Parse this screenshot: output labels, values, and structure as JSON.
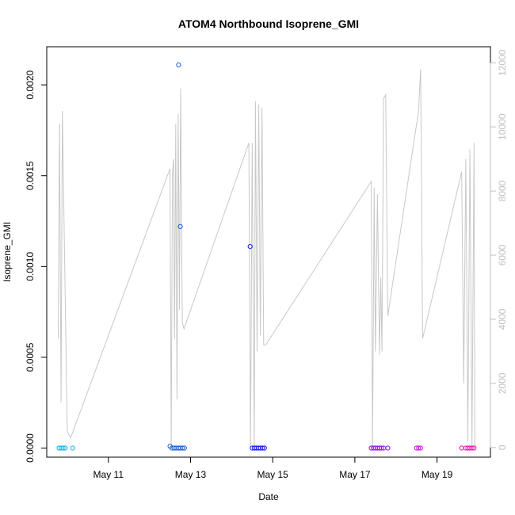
{
  "chart_data": {
    "type": "scatter",
    "title": "ATOM4 Northbound Isoprene_GMI",
    "xlabel": "Date",
    "ylabel": "Isoprene_GMI",
    "x_ticks": [
      "May 11",
      "May 13",
      "May 15",
      "May 17",
      "May 19"
    ],
    "x_tick_values": [
      11,
      13,
      15,
      17,
      19
    ],
    "xlim": [
      9.5,
      20.3
    ],
    "ylim": [
      -5e-05,
      0.00221
    ],
    "y_ticks": [
      "0.0000",
      "0.0005",
      "0.0010",
      "0.0015",
      "0.0020"
    ],
    "y_tick_values": [
      0,
      0.0005,
      0.001,
      0.0015,
      0.002
    ],
    "secondary_axis": {
      "ylim": [
        -300,
        12500
      ],
      "ticks": [
        "0",
        "2000",
        "4000",
        "6000",
        "8000",
        "10000",
        "12000"
      ],
      "tick_values": [
        0,
        2000,
        4000,
        6000,
        8000,
        10000,
        12000
      ],
      "color": "#bfbfbf"
    },
    "colors": {
      "line": "#c8c8c8",
      "box": "#000000"
    },
    "series": [
      {
        "type": "scatter",
        "points": [
          {
            "x": 9.8,
            "y": 0,
            "c": "#19b2e6"
          },
          {
            "x": 9.85,
            "y": 0,
            "c": "#19b2e6"
          },
          {
            "x": 9.9,
            "y": 0,
            "c": "#19b2e6"
          },
          {
            "x": 9.95,
            "y": 0,
            "c": "#19b2e6"
          },
          {
            "x": 10.13,
            "y": 0,
            "c": "#19b2e6"
          },
          {
            "x": 12.5,
            "y": 1e-05,
            "c": "#1f5fd6"
          },
          {
            "x": 12.55,
            "y": 0,
            "c": "#1f5fd6"
          },
          {
            "x": 12.6,
            "y": 0,
            "c": "#1f5fd6"
          },
          {
            "x": 12.65,
            "y": 0,
            "c": "#1f5fd6"
          },
          {
            "x": 12.7,
            "y": 0,
            "c": "#1f5fd6"
          },
          {
            "x": 12.75,
            "y": 0,
            "c": "#1f5fd6"
          },
          {
            "x": 12.8,
            "y": 0,
            "c": "#1f5fd6"
          },
          {
            "x": 12.85,
            "y": 0,
            "c": "#1f5fd6"
          },
          {
            "x": 12.71,
            "y": 0.00211,
            "c": "#1f5fd6"
          },
          {
            "x": 12.75,
            "y": 0.00122,
            "c": "#1f5fd6"
          },
          {
            "x": 14.45,
            "y": 0.00111,
            "c": "#1a1ae6"
          },
          {
            "x": 14.5,
            "y": 0,
            "c": "#1a1ae6"
          },
          {
            "x": 14.55,
            "y": 0,
            "c": "#1a1ae6"
          },
          {
            "x": 14.6,
            "y": 0,
            "c": "#1a1ae6"
          },
          {
            "x": 14.65,
            "y": 0,
            "c": "#1a1ae6"
          },
          {
            "x": 14.7,
            "y": 0,
            "c": "#1a1ae6"
          },
          {
            "x": 14.75,
            "y": 0,
            "c": "#1a1ae6"
          },
          {
            "x": 14.8,
            "y": 0,
            "c": "#1a1ae6"
          },
          {
            "x": 17.4,
            "y": 0,
            "c": "#8a1ae6"
          },
          {
            "x": 17.45,
            "y": 0,
            "c": "#8a1ae6"
          },
          {
            "x": 17.5,
            "y": 0,
            "c": "#8a1ae6"
          },
          {
            "x": 17.55,
            "y": 0,
            "c": "#8a1ae6"
          },
          {
            "x": 17.6,
            "y": 0,
            "c": "#8a1ae6"
          },
          {
            "x": 17.65,
            "y": 0,
            "c": "#8a1ae6"
          },
          {
            "x": 17.7,
            "y": 0,
            "c": "#8a1ae6"
          },
          {
            "x": 17.8,
            "y": 0,
            "c": "#8a1ae6"
          },
          {
            "x": 18.5,
            "y": 0,
            "c": "#c21ad6"
          },
          {
            "x": 18.55,
            "y": 0,
            "c": "#c21ad6"
          },
          {
            "x": 18.6,
            "y": 0,
            "c": "#c21ad6"
          },
          {
            "x": 19.6,
            "y": 0,
            "c": "#e61aa8"
          },
          {
            "x": 19.7,
            "y": 0,
            "c": "#e61aa8"
          },
          {
            "x": 19.75,
            "y": 0,
            "c": "#e61aa8"
          },
          {
            "x": 19.8,
            "y": 0,
            "c": "#e61aa8"
          },
          {
            "x": 19.85,
            "y": 0,
            "c": "#e61aa8"
          },
          {
            "x": 19.9,
            "y": 0,
            "c": "#e61aa8"
          }
        ]
      },
      {
        "type": "line",
        "axis": "secondary",
        "points": [
          [
            9.78,
            3400
          ],
          [
            9.81,
            10100
          ],
          [
            9.85,
            1400
          ],
          [
            9.88,
            10500
          ],
          [
            10.0,
            500
          ],
          [
            10.08,
            300
          ],
          [
            12.5,
            8700
          ],
          [
            12.53,
            50
          ],
          [
            12.56,
            8600
          ],
          [
            12.59,
            9000
          ],
          [
            12.61,
            3400
          ],
          [
            12.64,
            10100
          ],
          [
            12.67,
            1500
          ],
          [
            12.7,
            10400
          ],
          [
            12.73,
            4300
          ],
          [
            12.76,
            11200
          ],
          [
            12.8,
            3900
          ],
          [
            12.84,
            3700
          ],
          [
            14.42,
            9500
          ],
          [
            14.46,
            0
          ],
          [
            14.5,
            9500
          ],
          [
            14.55,
            0
          ],
          [
            14.58,
            10800
          ],
          [
            14.62,
            3000
          ],
          [
            14.66,
            10700
          ],
          [
            14.7,
            3500
          ],
          [
            14.74,
            10600
          ],
          [
            14.78,
            3200
          ],
          [
            14.83,
            3200
          ],
          [
            17.4,
            8300
          ],
          [
            17.43,
            0
          ],
          [
            17.47,
            8100
          ],
          [
            17.5,
            3000
          ],
          [
            17.55,
            7900
          ],
          [
            17.6,
            2900
          ],
          [
            17.63,
            5300
          ],
          [
            17.66,
            3000
          ],
          [
            17.7,
            10900
          ],
          [
            17.75,
            11000
          ],
          [
            17.8,
            4100
          ],
          [
            18.55,
            10500
          ],
          [
            18.6,
            11800
          ],
          [
            18.65,
            3400
          ],
          [
            19.6,
            8600
          ],
          [
            19.65,
            2000
          ],
          [
            19.7,
            9000
          ],
          [
            19.75,
            200
          ],
          [
            19.8,
            9300
          ],
          [
            19.85,
            0
          ],
          [
            19.9,
            9500
          ],
          [
            19.92,
            0
          ]
        ]
      }
    ]
  }
}
